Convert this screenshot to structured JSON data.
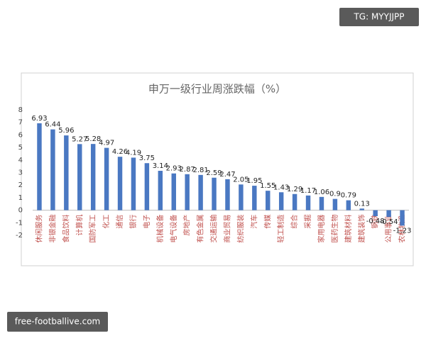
{
  "chart_data": {
    "type": "bar",
    "title": "申万一级行业周涨跌幅（%）",
    "categories": [
      "休闲服务",
      "非银金融",
      "食品饮料",
      "计算机",
      "国防军工",
      "化工",
      "通信",
      "银行",
      "电子",
      "机械设备",
      "电气设备",
      "房地产",
      "有色金属",
      "交通运输",
      "商业贸易",
      "纺织服装",
      "汽车",
      "传媒",
      "轻工制造",
      "综合",
      "采掘",
      "家用电器",
      "医药生物",
      "建筑材料",
      "建筑装饰",
      "钢铁",
      "公用事业",
      "农林牧渔"
    ],
    "values": [
      6.93,
      6.44,
      5.96,
      5.27,
      5.28,
      4.97,
      4.26,
      4.19,
      3.75,
      3.14,
      2.93,
      2.87,
      2.81,
      2.59,
      2.47,
      2.05,
      1.95,
      1.55,
      1.43,
      1.29,
      1.17,
      1.06,
      0.9,
      0.79,
      0.13,
      -0.48,
      -0.54,
      -1.23
    ],
    "color": "#4a78c2",
    "label_color": "#c0504d",
    "ylim": [
      -2,
      8
    ],
    "yticks": [
      -2,
      -1,
      0,
      1,
      2,
      3,
      4,
      5,
      6,
      7,
      8
    ],
    "grid": false
  },
  "watermarks": {
    "top": "TG: MYYJJPP",
    "bottom": "free-footballive.com"
  }
}
